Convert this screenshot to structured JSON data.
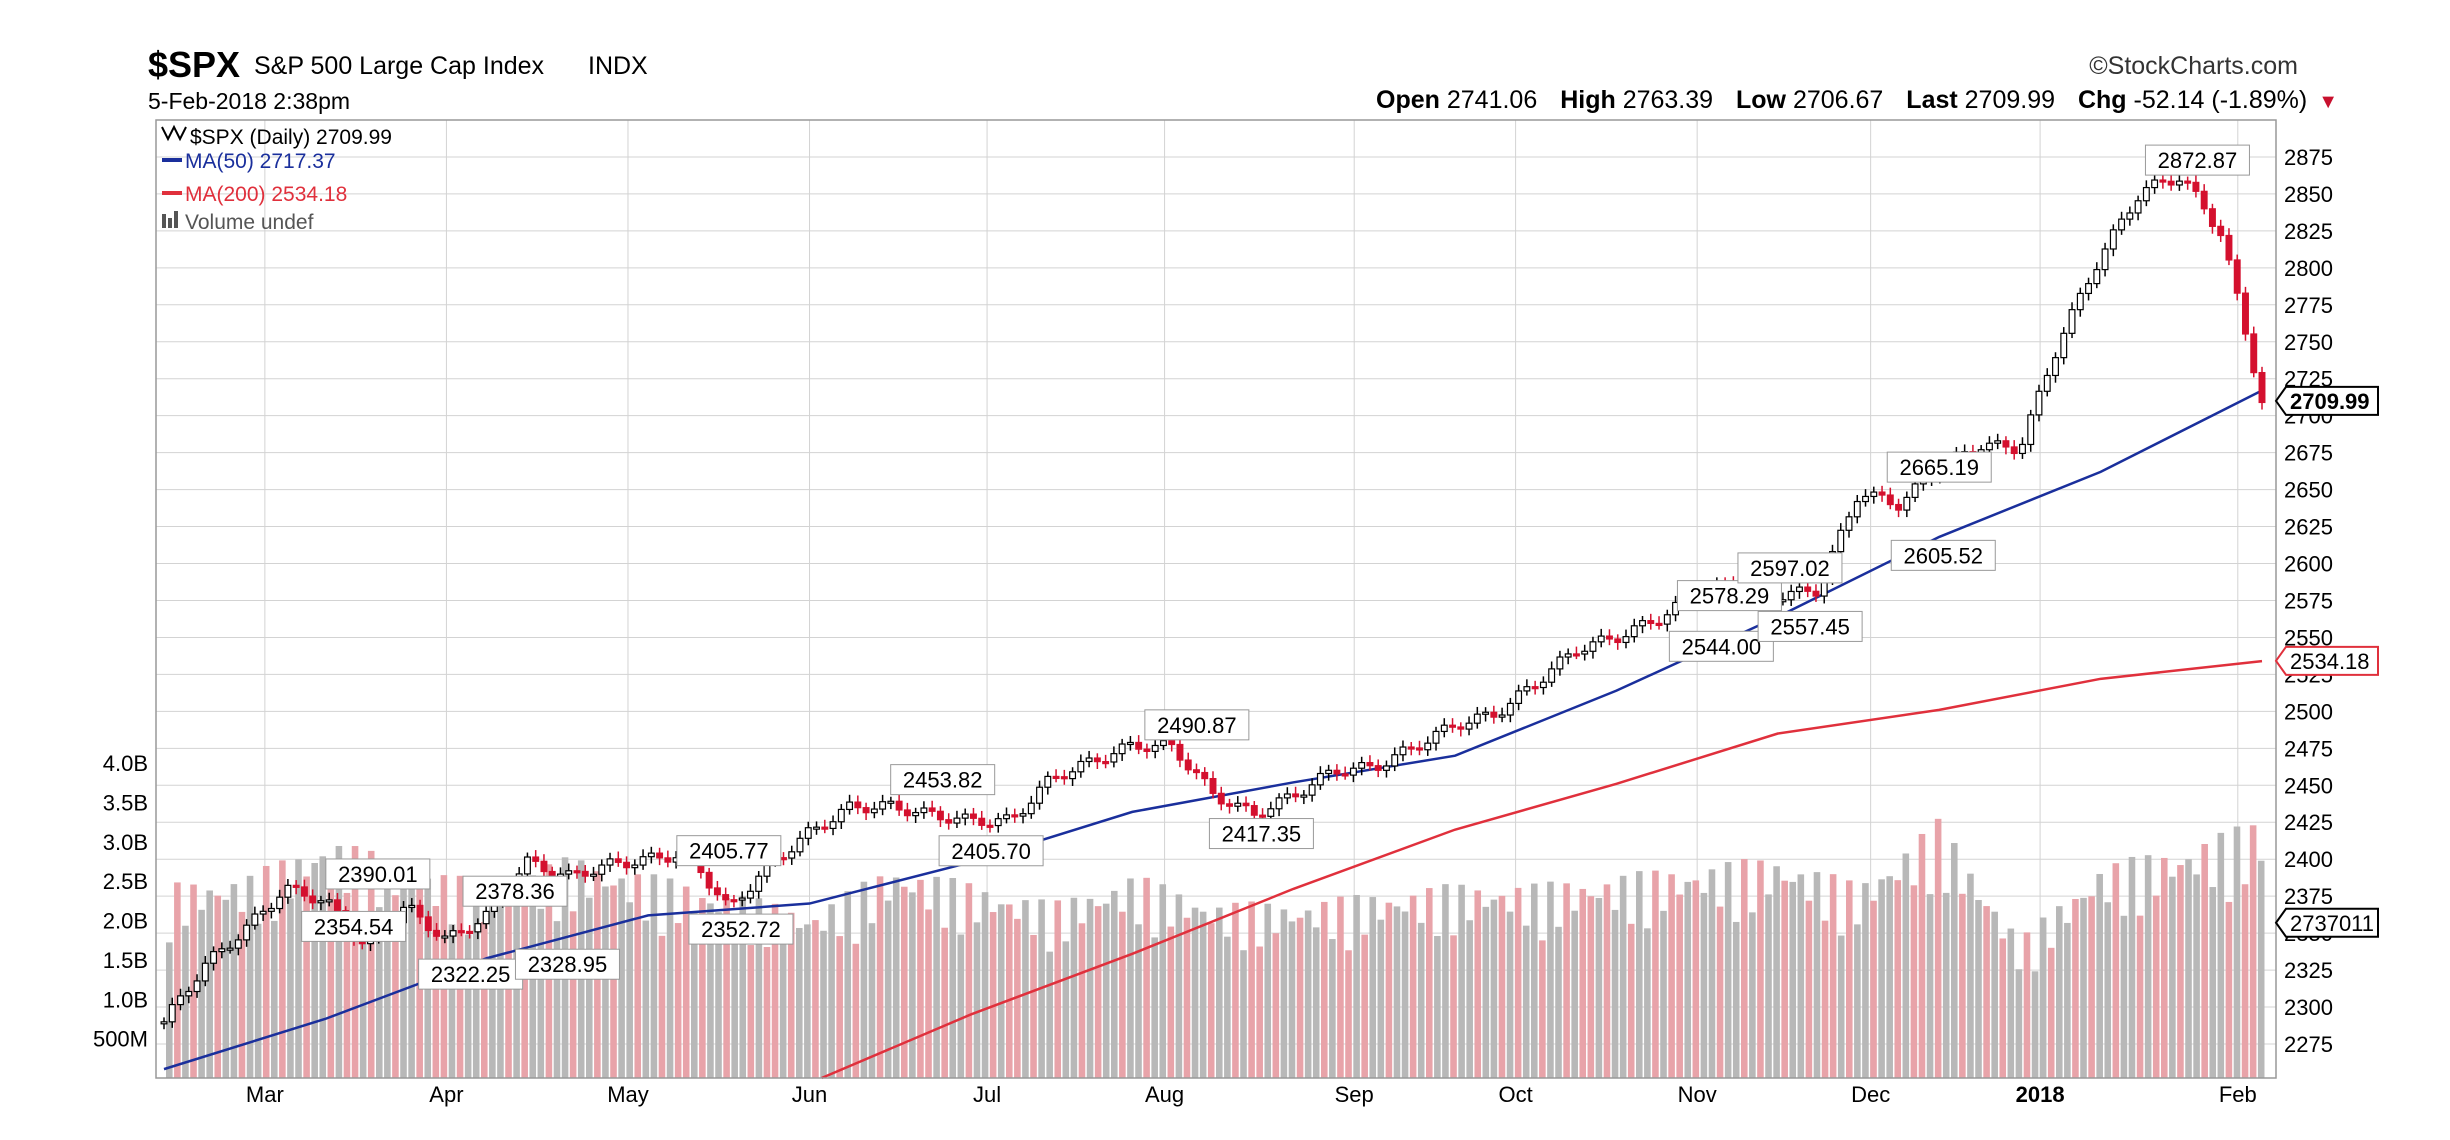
{
  "header": {
    "symbol": "$SPX",
    "name": "S&P 500 Large Cap Index",
    "exchange": "INDX",
    "datetime": "5-Feb-2018 2:38pm",
    "brand": "©StockCharts.com",
    "open_label": "Open",
    "open": "2741.06",
    "high_label": "High",
    "high": "2763.39",
    "low_label": "Low",
    "low": "2706.67",
    "last_label": "Last",
    "last": "2709.99",
    "chg_label": "Chg",
    "chg": "-52.14 (-1.89%)"
  },
  "legend": {
    "price": "$SPX (Daily) 2709.99",
    "ma50": "MA(50) 2717.37",
    "ma200": "MA(200) 2534.18",
    "volume": "Volume undef"
  },
  "colors": {
    "up": "#000000",
    "down": "#d4102e",
    "ma50": "#1a2f9c",
    "ma200": "#e0303c",
    "vol_up": "#b8b8b8",
    "vol_down": "#e8a3a9",
    "grid": "#d3d3d3"
  },
  "chart_data": {
    "type": "line",
    "title": "$SPX S&P 500 Large Cap Index",
    "ylim": [
      2252,
      2900
    ],
    "y_ticks": [
      2275,
      2300,
      2325,
      2350,
      2375,
      2400,
      2425,
      2450,
      2475,
      2500,
      2525,
      2550,
      2575,
      2600,
      2625,
      2650,
      2675,
      2700,
      2725,
      2750,
      2775,
      2800,
      2825,
      2850,
      2875
    ],
    "y_tick_labels": [
      "2275",
      "2300",
      "2325",
      "2350",
      "2375",
      "2400",
      "2425",
      "2450",
      "2475",
      "2500",
      "2525",
      "2550",
      "2575",
      "2600",
      "2625",
      "2650",
      "2675",
      "2700",
      "2725",
      "2750",
      "2775",
      "2800",
      "2825",
      "2850",
      "2875"
    ],
    "volume_ylim_billions": [
      0,
      4.8
    ],
    "volume_ticks": [
      0.5,
      1.0,
      1.5,
      2.0,
      2.5,
      3.0,
      3.5,
      4.0
    ],
    "volume_tick_labels": [
      "500M",
      "1.0B",
      "1.5B",
      "2.0B",
      "2.5B",
      "3.0B",
      "3.5B",
      "4.0B"
    ],
    "x_labels": [
      "Mar",
      "Apr",
      "May",
      "Jun",
      "Jul",
      "Aug",
      "Sep",
      "Oct",
      "Nov",
      "Dec",
      "2018",
      "Feb"
    ],
    "x_label_positions_week": [
      2.5,
      7,
      11.5,
      16,
      20.4,
      24.8,
      29.5,
      33.5,
      38,
      42.3,
      46.5,
      51.4
    ],
    "series": [
      {
        "name": "$SPX (Daily)",
        "style": "candles",
        "x_week": [
          0,
          1,
          2,
          3,
          4,
          5,
          6,
          7,
          8,
          9,
          10,
          11,
          12,
          13,
          14,
          15,
          16,
          17,
          18,
          19,
          20,
          21,
          22,
          23,
          24,
          25,
          26,
          27,
          28,
          29,
          30,
          31,
          32,
          33,
          34,
          35,
          36,
          37,
          38,
          39,
          40,
          41,
          42,
          43,
          44,
          45,
          46,
          47,
          48,
          49,
          50,
          51,
          52
        ],
        "values": [
          2290,
          2328,
          2352,
          2380,
          2372,
          2340,
          2368,
          2345,
          2362,
          2398,
          2388,
          2396,
          2400,
          2404,
          2366,
          2396,
          2418,
          2435,
          2436,
          2430,
          2426,
          2426,
          2455,
          2466,
          2477,
          2476,
          2444,
          2430,
          2443,
          2460,
          2462,
          2476,
          2491,
          2498,
          2519,
          2542,
          2550,
          2562,
          2580,
          2586,
          2578,
          2582,
          2648,
          2640,
          2665,
          2680,
          2678,
          2752,
          2808,
          2852,
          2862,
          2823,
          2710
        ]
      },
      {
        "name": "MA(50)",
        "x_week": [
          0,
          4,
          8,
          12,
          16,
          20,
          24,
          28,
          32,
          36,
          40,
          44,
          48,
          52
        ],
        "values": [
          2258,
          2292,
          2333,
          2362,
          2370,
          2398,
          2432,
          2452,
          2470,
          2514,
          2564,
          2618,
          2662,
          2717
        ]
      },
      {
        "name": "MA(200)",
        "x_week": [
          16.3,
          20,
          24,
          28,
          32,
          36,
          40,
          44,
          48,
          52
        ],
        "values": [
          2252,
          2295,
          2336,
          2380,
          2420,
          2451,
          2485,
          2501,
          2522,
          2534
        ]
      }
    ],
    "volume": {
      "x_week": [
        0,
        2,
        4,
        6,
        8,
        10,
        12,
        14,
        16,
        18,
        20,
        22,
        24,
        26,
        28,
        30,
        32,
        34,
        36,
        38,
        40,
        42,
        44,
        46,
        48,
        50,
        52
      ],
      "values_billions": [
        2.1,
        2.2,
        2.6,
        2.3,
        2.1,
        2.4,
        2.2,
        2.0,
        1.8,
        2.3,
        2.1,
        1.9,
        2.2,
        1.9,
        1.9,
        2.0,
        2.1,
        2.1,
        2.2,
        2.3,
        2.4,
        2.1,
        2.8,
        1.5,
        2.3,
        2.5,
        2.8
      ]
    },
    "annotations": [
      {
        "text": "2390.01",
        "x_week": 5.3,
        "y": 2390.01
      },
      {
        "text": "2354.54",
        "x_week": 4.7,
        "y": 2354.54
      },
      {
        "text": "2378.36",
        "x_week": 8.7,
        "y": 2378.36
      },
      {
        "text": "2322.25",
        "x_week": 7.6,
        "y": 2322.25
      },
      {
        "text": "2328.95",
        "x_week": 10.0,
        "y": 2328.95
      },
      {
        "text": "2405.77",
        "x_week": 14.0,
        "y": 2405.77
      },
      {
        "text": "2352.72",
        "x_week": 14.3,
        "y": 2352.72
      },
      {
        "text": "2453.82",
        "x_week": 19.3,
        "y": 2453.82
      },
      {
        "text": "2405.70",
        "x_week": 20.5,
        "y": 2405.7
      },
      {
        "text": "2490.87",
        "x_week": 25.6,
        "y": 2490.87
      },
      {
        "text": "2417.35",
        "x_week": 27.2,
        "y": 2417.35
      },
      {
        "text": "2578.29",
        "x_week": 38.8,
        "y": 2578.29
      },
      {
        "text": "2544.00",
        "x_week": 38.6,
        "y": 2544.0
      },
      {
        "text": "2597.02",
        "x_week": 40.3,
        "y": 2597.02
      },
      {
        "text": "2557.45",
        "x_week": 40.8,
        "y": 2557.45
      },
      {
        "text": "2605.52",
        "x_week": 44.1,
        "y": 2605.52
      },
      {
        "text": "2665.19",
        "x_week": 44.0,
        "y": 2665.19
      },
      {
        "text": "2872.87",
        "x_week": 50.4,
        "y": 2872.87
      }
    ],
    "right_markers": [
      {
        "text": "2709.99",
        "y": 2709.99,
        "style": "bold-black"
      },
      {
        "text": "2534.18",
        "y": 2534.18,
        "style": "red"
      },
      {
        "text": "2737011",
        "y": 2357,
        "style": "black"
      }
    ],
    "grid": true,
    "legend_position": "top-left"
  }
}
